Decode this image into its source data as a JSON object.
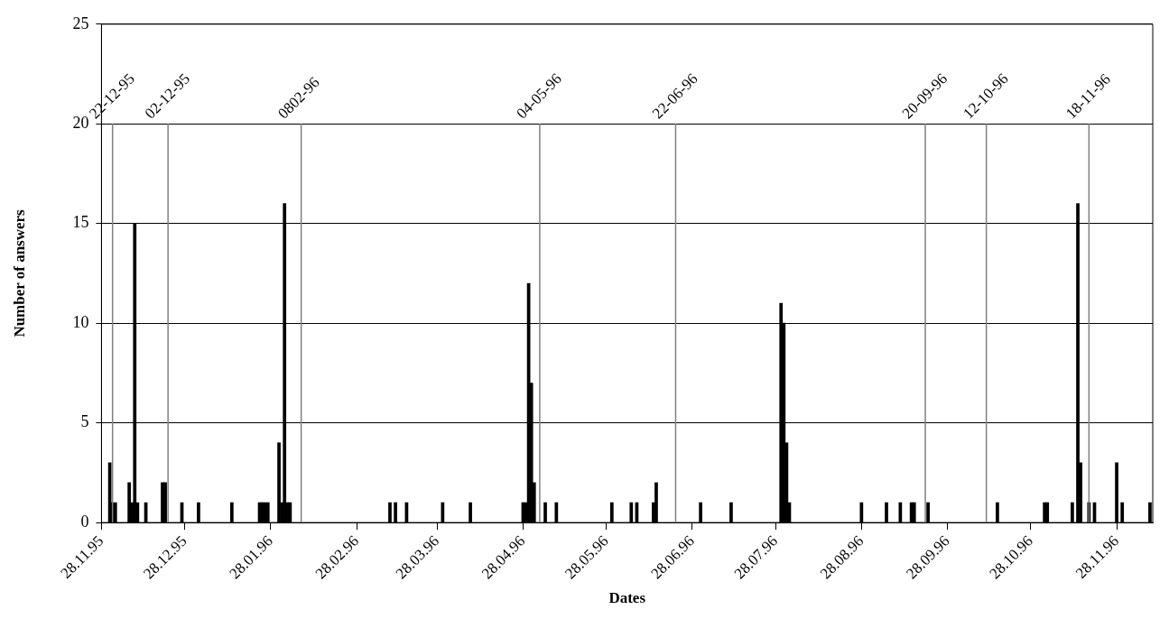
{
  "chart_data": {
    "type": "bar",
    "xlabel": "Dates",
    "ylabel": "Number of answers",
    "color": "#000000",
    "x": [
      "1995-12-01",
      "1995-12-02",
      "1995-12-03",
      "1995-12-08",
      "1995-12-09",
      "1995-12-10",
      "1995-12-11",
      "1995-12-14",
      "1995-12-20",
      "1995-12-21",
      "1995-12-27",
      "1996-01-02",
      "1996-01-14",
      "1996-01-24",
      "1996-01-25",
      "1996-01-26",
      "1996-01-27",
      "1996-01-31",
      "1996-02-01",
      "1996-02-02",
      "1996-02-03",
      "1996-02-04",
      "1996-03-11",
      "1996-03-13",
      "1996-03-17",
      "1996-03-30",
      "1996-04-09",
      "1996-04-28",
      "1996-04-29",
      "1996-04-30",
      "1996-05-01",
      "1996-05-02",
      "1996-05-06",
      "1996-05-10",
      "1996-05-30",
      "1996-06-06",
      "1996-06-08",
      "1996-06-14",
      "1996-06-15",
      "1996-07-01",
      "1996-07-12",
      "1996-07-30",
      "1996-07-31",
      "1996-08-01",
      "1996-08-02",
      "1996-08-28",
      "1996-09-06",
      "1996-09-11",
      "1996-09-15",
      "1996-09-16",
      "1996-09-21",
      "1996-10-16",
      "1996-11-02",
      "1996-11-03",
      "1996-11-12",
      "1996-11-14",
      "1996-11-15",
      "1996-11-18",
      "1996-11-20",
      "1996-11-28",
      "1996-11-30",
      "1996-12-10"
    ],
    "values": [
      3,
      1,
      1,
      2,
      1,
      15,
      1,
      1,
      2,
      2,
      1,
      1,
      1,
      1,
      1,
      1,
      1,
      4,
      1,
      16,
      1,
      1,
      1,
      1,
      1,
      1,
      1,
      1,
      1,
      12,
      7,
      2,
      1,
      1,
      1,
      1,
      1,
      1,
      2,
      1,
      1,
      11,
      10,
      4,
      1,
      1,
      1,
      1,
      1,
      1,
      1,
      1,
      1,
      1,
      1,
      16,
      3,
      1,
      1,
      3,
      1,
      1
    ],
    "xlim": [
      "1995-11-28",
      "1996-12-11"
    ],
    "xticks": [
      {
        "value": "1995-11-28",
        "label": "28.11.95"
      },
      {
        "value": "1995-12-28",
        "label": "28.12.95"
      },
      {
        "value": "1996-01-28",
        "label": "28.01.96"
      },
      {
        "value": "1996-02-28",
        "label": "28.02.96"
      },
      {
        "value": "1996-03-28",
        "label": "28.03.96"
      },
      {
        "value": "1996-04-28",
        "label": "28.04.96"
      },
      {
        "value": "1996-05-28",
        "label": "28.05.96"
      },
      {
        "value": "1996-06-28",
        "label": "28.06.96"
      },
      {
        "value": "1996-07-28",
        "label": "28.07.96"
      },
      {
        "value": "1996-08-28",
        "label": "28.08.96"
      },
      {
        "value": "1996-09-28",
        "label": "28.09.96"
      },
      {
        "value": "1996-10-28",
        "label": "28.10.96"
      },
      {
        "value": "1996-11-28",
        "label": "28.11.96"
      }
    ],
    "ylim": [
      0,
      25
    ],
    "yticks": [
      0,
      5,
      10,
      15,
      20,
      25
    ],
    "grid": "y",
    "ref_lines": [
      {
        "axis": "x",
        "value": "1995-12-02",
        "label": "22-12-95",
        "color": "#808080"
      },
      {
        "axis": "x",
        "value": "1995-12-22",
        "label": "02-12-95",
        "color": "#808080"
      },
      {
        "axis": "x",
        "value": "1996-02-08",
        "label": "0802-96",
        "color": "#808080"
      },
      {
        "axis": "x",
        "value": "1996-05-04",
        "label": "04-05-96",
        "color": "#808080"
      },
      {
        "axis": "x",
        "value": "1996-06-22",
        "label": "22-06-96",
        "color": "#808080"
      },
      {
        "axis": "x",
        "value": "1996-09-20",
        "label": "20-09-96",
        "color": "#808080"
      },
      {
        "axis": "x",
        "value": "1996-10-12",
        "label": "12-10-96",
        "color": "#808080"
      },
      {
        "axis": "x",
        "value": "1996-11-18",
        "label": "18-11-96",
        "color": "#808080"
      }
    ]
  }
}
